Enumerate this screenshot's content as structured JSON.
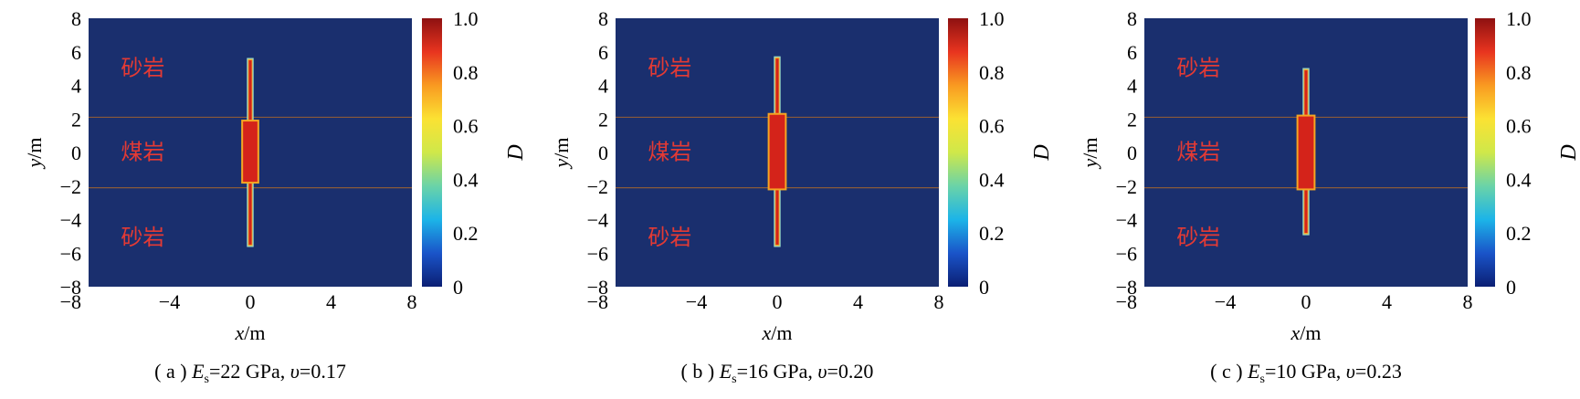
{
  "layer_labels": {
    "top": "砂岩",
    "middle": "煤岩",
    "bottom": "砂岩"
  },
  "colors": {
    "background": "#1a2f6e",
    "crack_core": "#d4231a",
    "crack_edge": "#f5a623",
    "crack_outline": "#9adcc8",
    "interface_line": "#8a5a3a",
    "label_text": "#e43a34",
    "colorscale": [
      "#0b1f73",
      "#1a54c9",
      "#1cb4e8",
      "#6ad3a8",
      "#cfe84a",
      "#fbe233",
      "#f99a21",
      "#e8341f",
      "#8e1111"
    ]
  },
  "chart_data": [
    {
      "type": "heatmap",
      "caption": {
        "prefix": "( a ) ",
        "E_sym": "E",
        "E_sub": "s",
        "E_val": "=22 GPa, ",
        "nu_sym": "υ",
        "nu_val": "=0.17"
      },
      "xlabel": {
        "sym": "x",
        "unit": "/m"
      },
      "ylabel": {
        "sym": "y",
        "unit": "/m"
      },
      "xlim": [
        -8,
        8
      ],
      "ylim": [
        -8,
        8
      ],
      "xticks": [
        "−4",
        "0",
        "4",
        "8"
      ],
      "yticks": [
        "8",
        "6",
        "4",
        "2",
        "0",
        "−2",
        "−4",
        "−6",
        "−8"
      ],
      "colorbar": {
        "label": "D",
        "range": [
          0,
          1
        ],
        "ticks": [
          "0",
          "0.2",
          "0.4",
          "0.6",
          "0.8",
          "1.0"
        ]
      },
      "interfaces_y": [
        2.1,
        -2.1
      ],
      "fracture": {
        "x_center": 0,
        "full_width": 0.8,
        "full_y": [
          -1.8,
          1.9
        ],
        "tip_width": 0.28,
        "tip_y": [
          -5.6,
          5.6
        ]
      }
    },
    {
      "type": "heatmap",
      "caption": {
        "prefix": "( b ) ",
        "E_sym": "E",
        "E_sub": "s",
        "E_val": "=16 GPa, ",
        "nu_sym": "υ",
        "nu_val": "=0.20"
      },
      "xlabel": {
        "sym": "x",
        "unit": "/m"
      },
      "ylabel": {
        "sym": "y",
        "unit": "/m"
      },
      "xlim": [
        -8,
        8
      ],
      "ylim": [
        -8,
        8
      ],
      "xticks": [
        "−4",
        "0",
        "4",
        "8"
      ],
      "yticks": [
        "8",
        "6",
        "4",
        "2",
        "0",
        "−2",
        "−4",
        "−6",
        "−8"
      ],
      "colorbar": {
        "label": "D",
        "range": [
          0,
          1
        ],
        "ticks": [
          "0",
          "0.2",
          "0.4",
          "0.6",
          "0.8",
          "1.0"
        ]
      },
      "interfaces_y": [
        2.1,
        -2.1
      ],
      "fracture": {
        "x_center": 0,
        "full_width": 0.85,
        "full_y": [
          -2.2,
          2.3
        ],
        "tip_width": 0.28,
        "tip_y": [
          -5.6,
          5.7
        ]
      }
    },
    {
      "type": "heatmap",
      "caption": {
        "prefix": "( c ) ",
        "E_sym": "E",
        "E_sub": "s",
        "E_val": "=10 GPa, ",
        "nu_sym": "υ",
        "nu_val": "=0.23"
      },
      "xlabel": {
        "sym": "x",
        "unit": "/m"
      },
      "ylabel": {
        "sym": "y",
        "unit": "/m"
      },
      "xlim": [
        -8,
        8
      ],
      "ylim": [
        -8,
        8
      ],
      "xticks": [
        "−4",
        "0",
        "4",
        "8"
      ],
      "yticks": [
        "8",
        "6",
        "4",
        "2",
        "0",
        "−2",
        "−4",
        "−6",
        "−8"
      ],
      "colorbar": {
        "label": "D",
        "range": [
          0,
          1
        ],
        "ticks": [
          "0",
          "0.2",
          "0.4",
          "0.6",
          "0.8",
          "1.0"
        ]
      },
      "interfaces_y": [
        2.1,
        -2.1
      ],
      "fracture": {
        "x_center": 0,
        "full_width": 0.85,
        "full_y": [
          -2.2,
          2.2
        ],
        "tip_width": 0.28,
        "tip_y": [
          -4.9,
          5.0
        ]
      }
    }
  ]
}
